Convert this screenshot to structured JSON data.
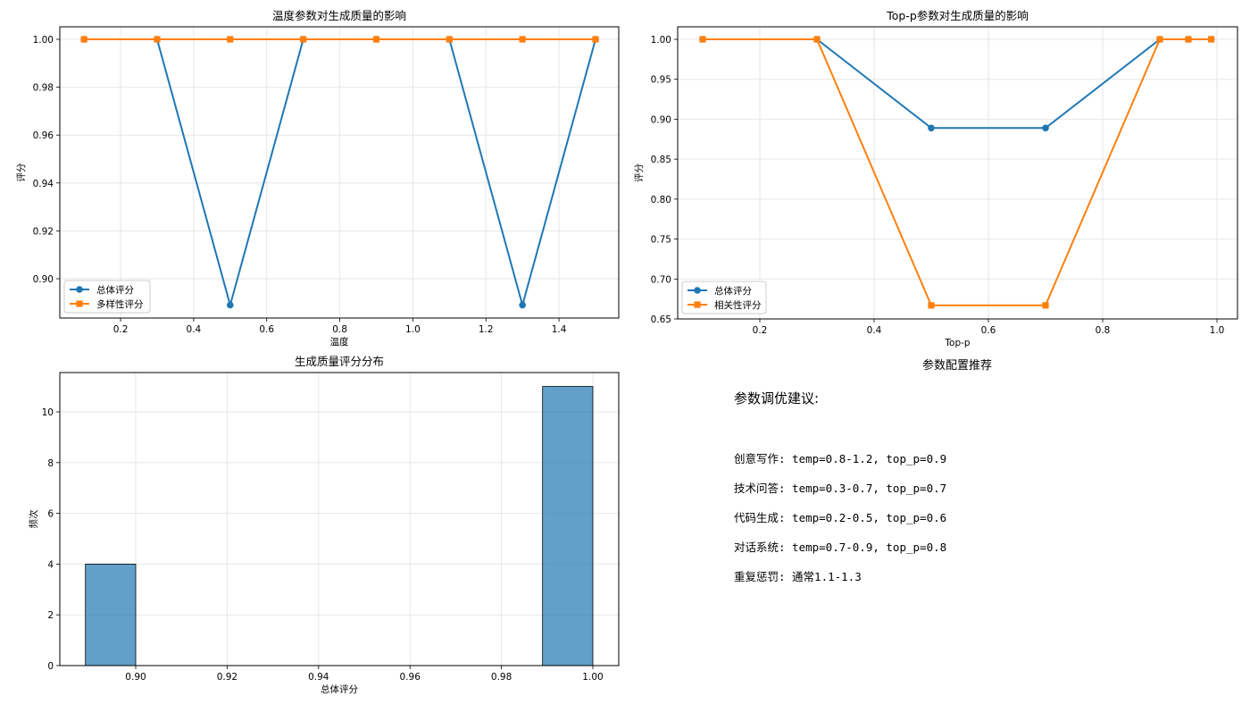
{
  "chart_data": [
    {
      "type": "line",
      "title": "温度参数对生成质量的影响",
      "xlabel": "温度",
      "ylabel": "评分",
      "x": [
        0.1,
        0.3,
        0.5,
        0.7,
        0.9,
        1.1,
        1.3,
        1.5
      ],
      "series": [
        {
          "name": "总体评分",
          "marker": "circle",
          "color": "#1f77b4",
          "values": [
            1.0,
            1.0,
            0.889,
            1.0,
            1.0,
            1.0,
            0.889,
            1.0
          ]
        },
        {
          "name": "多样性评分",
          "marker": "square",
          "color": "#ff7f0e",
          "values": [
            1.0,
            1.0,
            1.0,
            1.0,
            1.0,
            1.0,
            1.0,
            1.0
          ]
        }
      ],
      "xticks": [
        "0.2",
        "0.4",
        "0.6",
        "0.8",
        "1.0",
        "1.2",
        "1.4"
      ],
      "yticks": [
        "0.90",
        "0.92",
        "0.94",
        "0.96",
        "0.98",
        "1.00"
      ],
      "ylim": [
        0.884,
        1.005
      ],
      "grid": true,
      "legend_position": "lower left"
    },
    {
      "type": "line",
      "title": "Top-p参数对生成质量的影响",
      "xlabel": "Top-p",
      "ylabel": "评分",
      "x": [
        0.1,
        0.3,
        0.5,
        0.7,
        0.9,
        0.95,
        0.99
      ],
      "series": [
        {
          "name": "总体评分",
          "marker": "circle",
          "color": "#1f77b4",
          "values": [
            1.0,
            1.0,
            0.889,
            0.889,
            1.0,
            1.0,
            1.0
          ]
        },
        {
          "name": "相关性评分",
          "marker": "square",
          "color": "#ff7f0e",
          "values": [
            1.0,
            1.0,
            0.667,
            0.667,
            1.0,
            1.0,
            1.0
          ]
        }
      ],
      "xticks": [
        "0.2",
        "0.4",
        "0.6",
        "0.8",
        "1.0"
      ],
      "yticks": [
        "0.65",
        "0.70",
        "0.75",
        "0.80",
        "0.85",
        "0.90",
        "0.95",
        "1.00"
      ],
      "ylim": [
        0.65,
        1.017
      ],
      "grid": true,
      "legend_position": "lower left"
    },
    {
      "type": "bar",
      "subtype": "histogram",
      "title": "生成质量评分分布",
      "xlabel": "总体评分",
      "ylabel": "频次",
      "bins": [
        [
          0.889,
          0.9
        ],
        [
          0.989,
          1.0
        ]
      ],
      "values": [
        4,
        11
      ],
      "color": "#1f77b4",
      "xticks": [
        "0.90",
        "0.92",
        "0.94",
        "0.96",
        "0.98",
        "1.00"
      ],
      "yticks": [
        "0",
        "2",
        "4",
        "6",
        "8",
        "10"
      ],
      "ylim": [
        0,
        11.55
      ],
      "grid": true
    }
  ],
  "recommendations": {
    "title": "参数配置推荐",
    "heading": "参数调优建议:",
    "items": [
      "创意写作: temp=0.8-1.2, top_p=0.9",
      "技术问答: temp=0.3-0.7, top_p=0.7",
      "代码生成: temp=0.2-0.5, top_p=0.6",
      "对话系统: temp=0.7-0.9, top_p=0.8",
      "重复惩罚: 通常1.1-1.3"
    ]
  }
}
